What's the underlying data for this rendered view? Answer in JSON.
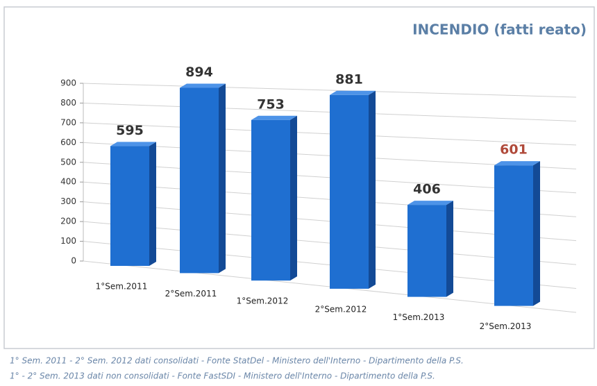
{
  "chart_data": {
    "type": "bar3d",
    "title": "INCENDIO  (fatti reato)",
    "categories": [
      "1°Sem.2011",
      "2°Sem.2011",
      "1°Sem.2012",
      "2°Sem.2012",
      "1°Sem.2013",
      "2°Sem.2013"
    ],
    "values": [
      595,
      894,
      753,
      881,
      406,
      601
    ],
    "color": "#1f6fd1",
    "value_label_colors": [
      "#333333",
      "#333333",
      "#333333",
      "#333333",
      "#333333",
      "#b04a3a"
    ],
    "ylim": [
      0,
      900
    ],
    "yticks": [
      0,
      100,
      200,
      300,
      400,
      500,
      600,
      700,
      800,
      900
    ],
    "grid": true,
    "footnotes": [
      "1° Sem. 2011 - 2° Sem. 2012 dati consolidati - Fonte StatDel - Ministero dell'Interno - Dipartimento della P.S.",
      "1° - 2° Sem. 2013 dati non consolidati - Fonte FastSDI - Ministero dell'Interno - Dipartimento della P.S."
    ]
  }
}
